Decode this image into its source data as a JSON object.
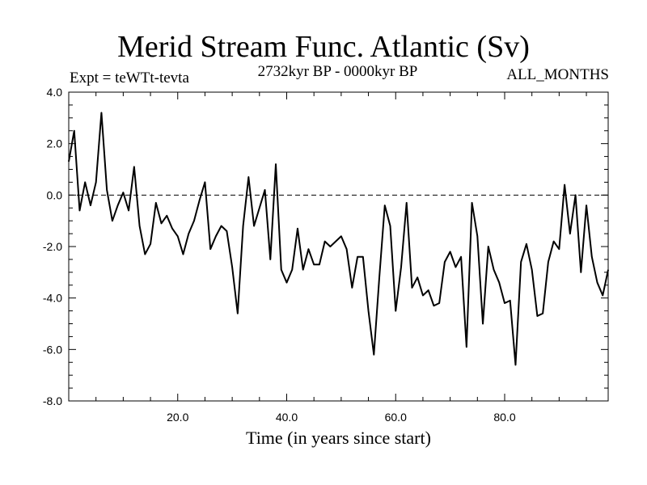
{
  "chart_data": {
    "type": "line",
    "title": "Merid Stream Func. Atlantic (Sv)",
    "subtitle_left": "Expt = teWTt-tevta",
    "subtitle_center": "2732kyr BP - 0000kyr BP",
    "subtitle_right": "ALL_MONTHS",
    "xlabel": "Time (in years since start)",
    "ylabel": "",
    "xlim": [
      0,
      99
    ],
    "ylim": [
      -8,
      4
    ],
    "xticks": [
      20,
      40,
      60,
      80
    ],
    "xtick_labels": [
      "20.0",
      "40.0",
      "60.0",
      "80.0"
    ],
    "yticks": [
      4,
      2,
      0,
      -2,
      -4,
      -6,
      -8
    ],
    "ytick_labels": [
      "4.0",
      "2.0",
      "0.0",
      "-2.0",
      "-4.0",
      "-6.0",
      "-8.0"
    ],
    "reference_line": {
      "y": 0,
      "style": "dashed"
    },
    "x": [
      0,
      1,
      2,
      3,
      4,
      5,
      6,
      7,
      8,
      9,
      10,
      11,
      12,
      13,
      14,
      15,
      16,
      17,
      18,
      19,
      20,
      21,
      22,
      23,
      24,
      25,
      26,
      27,
      28,
      29,
      30,
      31,
      32,
      33,
      34,
      35,
      36,
      37,
      38,
      39,
      40,
      41,
      42,
      43,
      44,
      45,
      46,
      47,
      48,
      49,
      50,
      51,
      52,
      53,
      54,
      55,
      56,
      57,
      58,
      59,
      60,
      61,
      62,
      63,
      64,
      65,
      66,
      67,
      68,
      69,
      70,
      71,
      72,
      73,
      74,
      75,
      76,
      77,
      78,
      79,
      80,
      81,
      82,
      83,
      84,
      85,
      86,
      87,
      88,
      89,
      90,
      91,
      92,
      93,
      94,
      95,
      96,
      97,
      98,
      99
    ],
    "series": [
      {
        "name": "Merid Stream Func. Atlantic",
        "values": [
          1.3,
          2.5,
          -0.6,
          0.5,
          -0.4,
          0.5,
          3.2,
          0.2,
          -1.0,
          -0.4,
          0.1,
          -0.6,
          1.1,
          -1.2,
          -2.3,
          -1.9,
          -0.3,
          -1.1,
          -0.8,
          -1.3,
          -1.6,
          -2.3,
          -1.5,
          -1.0,
          -0.2,
          0.5,
          -2.1,
          -1.6,
          -1.2,
          -1.4,
          -2.8,
          -4.6,
          -1.2,
          0.7,
          -1.2,
          -0.5,
          0.2,
          -2.5,
          1.2,
          -2.9,
          -3.4,
          -2.9,
          -1.3,
          -2.9,
          -2.1,
          -2.7,
          -2.7,
          -1.8,
          -2.0,
          -1.8,
          -1.6,
          -2.1,
          -3.6,
          -2.4,
          -2.4,
          -4.5,
          -6.2,
          -3.2,
          -0.4,
          -1.2,
          -4.5,
          -2.8,
          -0.3,
          -3.6,
          -3.2,
          -3.9,
          -3.7,
          -4.3,
          -4.2,
          -2.6,
          -2.2,
          -2.8,
          -2.4,
          -5.9,
          -0.3,
          -1.6,
          -5.0,
          -2.0,
          -2.9,
          -3.4,
          -4.2,
          -4.1,
          -6.6,
          -2.6,
          -1.9,
          -2.9,
          -4.7,
          -4.6,
          -2.6,
          -1.8,
          -2.1,
          0.4,
          -1.5,
          0.0,
          -3.0,
          -0.4,
          -2.4,
          -3.4,
          -3.9,
          -2.9
        ]
      }
    ]
  }
}
